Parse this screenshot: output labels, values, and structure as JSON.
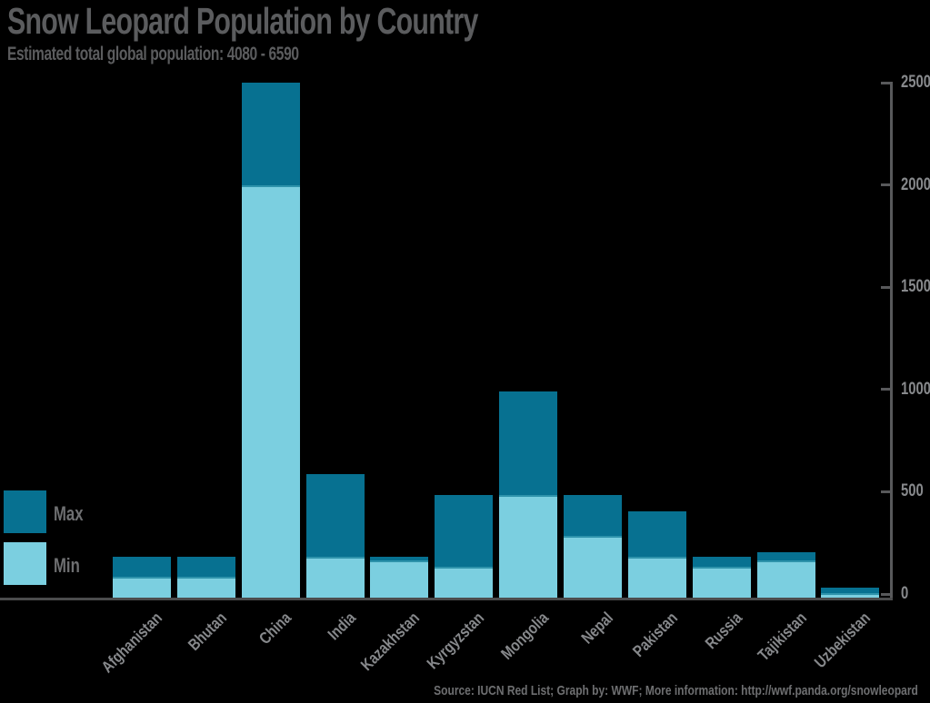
{
  "header": {
    "title": "Snow Leopard Population by Country",
    "subtitle": "Estimated total global population: 4080 - 6590"
  },
  "footer": {
    "source": "Source: IUCN Red List; Graph by: WWF; More information: http://wwf.panda.org/snowleopard"
  },
  "colors": {
    "background": "#000000",
    "max_bar": "#077191",
    "min_bar": "#7bcfe0",
    "min_bar_top_edge": "#2e93ab",
    "title_text": "#5b5c5e",
    "axis_line": "#58595b",
    "baseline": "#4b4c4d",
    "tick_text": "#87898c",
    "legend_text": "#6e6f71"
  },
  "chart_data": {
    "type": "bar",
    "subtype": "overlaid-range",
    "title": "Snow Leopard Population by Country",
    "subtitle": "Estimated total global population: 4080 - 6590",
    "categories": [
      "Afghanistan",
      "Bhutan",
      "China",
      "India",
      "Kazakhstan",
      "Kyrgyzstan",
      "Mongolia",
      "Nepal",
      "Pakistan",
      "Russia",
      "Tajikistan",
      "Uzbekistan"
    ],
    "series": [
      {
        "name": "Max",
        "color": "#077191",
        "values": [
          200,
          200,
          2500,
          600,
          200,
          500,
          1000,
          500,
          420,
          200,
          220,
          50
        ]
      },
      {
        "name": "Min",
        "color": "#7bcfe0",
        "values": [
          100,
          100,
          2000,
          200,
          180,
          150,
          500,
          300,
          200,
          150,
          180,
          20
        ]
      }
    ],
    "ylim": [
      0,
      2500
    ],
    "y_ticks": [
      0,
      500,
      1000,
      1500,
      2000,
      2500
    ],
    "axis_side": "right",
    "legend_position": "middle-left",
    "grid": false,
    "x_label_rotation_deg": -45,
    "source": "Source: IUCN Red List; Graph by: WWF; More information: http://wwf.panda.org/snowleopard"
  }
}
